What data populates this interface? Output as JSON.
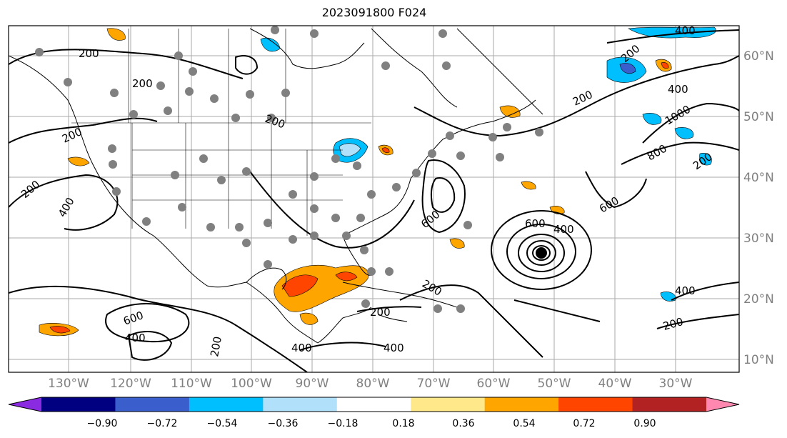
{
  "title": "2023091800 F024",
  "longitude_labels": [
    "130°W",
    "120°W",
    "110°W",
    "100°W",
    "90°W",
    "80°W",
    "70°W",
    "60°W",
    "50°W",
    "40°W",
    "30°W"
  ],
  "latitude_labels": [
    "60°N",
    "50°N",
    "40°N",
    "30°N",
    "20°N",
    "10°N"
  ],
  "contour_labels": [
    "200",
    "400",
    "600",
    "800",
    "1000"
  ],
  "colorbar": {
    "colors": [
      "#8a2be2",
      "#000080",
      "#3a5fcd",
      "#00bfff",
      "#b0e0fa",
      "#ffffff",
      "#ffe88a",
      "#ffa500",
      "#ff4500",
      "#b22222",
      "#ff88b0"
    ],
    "tick_labels": [
      "−0.90",
      "−0.72",
      "−0.54",
      "−0.36",
      "−0.18",
      "0.18",
      "0.36",
      "0.54",
      "0.72",
      "0.90"
    ]
  },
  "station_marker_color": "#808080"
}
